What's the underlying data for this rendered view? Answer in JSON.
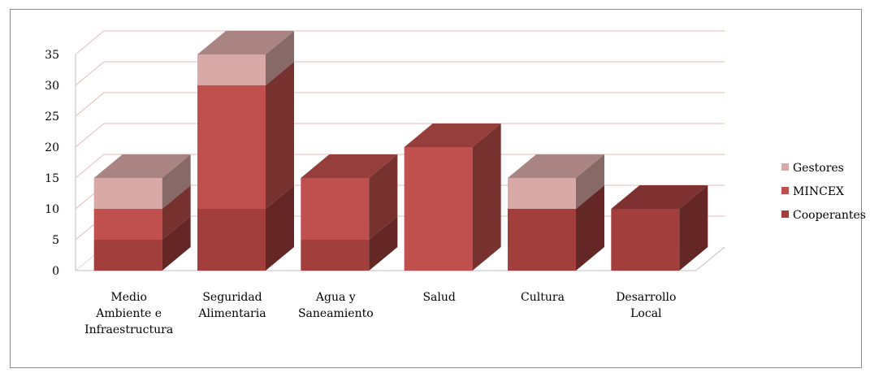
{
  "chart_data": {
    "type": "bar",
    "stacked": true,
    "three_d": true,
    "categories": [
      [
        "Medio",
        "Ambiente e",
        "Infraestructura"
      ],
      [
        "Seguridad",
        "Alimentaria"
      ],
      [
        "Agua y",
        "Saneamiento"
      ],
      [
        "Salud"
      ],
      [
        "Cultura"
      ],
      [
        "Desarrollo",
        "Local"
      ]
    ],
    "series": [
      {
        "name": "Cooperantes",
        "values": [
          5,
          10,
          5,
          0,
          10,
          10
        ],
        "color": "#a23f3d"
      },
      {
        "name": "MINCEX",
        "values": [
          5,
          20,
          10,
          20,
          0,
          0
        ],
        "color": "#c0504d"
      },
      {
        "name": "Gestores",
        "values": [
          5,
          5,
          0,
          0,
          5,
          0
        ],
        "color": "#d9a9a8"
      }
    ],
    "y_ticks": [
      "0",
      "5",
      "10",
      "15",
      "20",
      "25",
      "30",
      "35"
    ],
    "ylim": [
      0,
      35
    ],
    "grid": true,
    "grid_color": "#e6b9b8",
    "legend_position": "right"
  }
}
